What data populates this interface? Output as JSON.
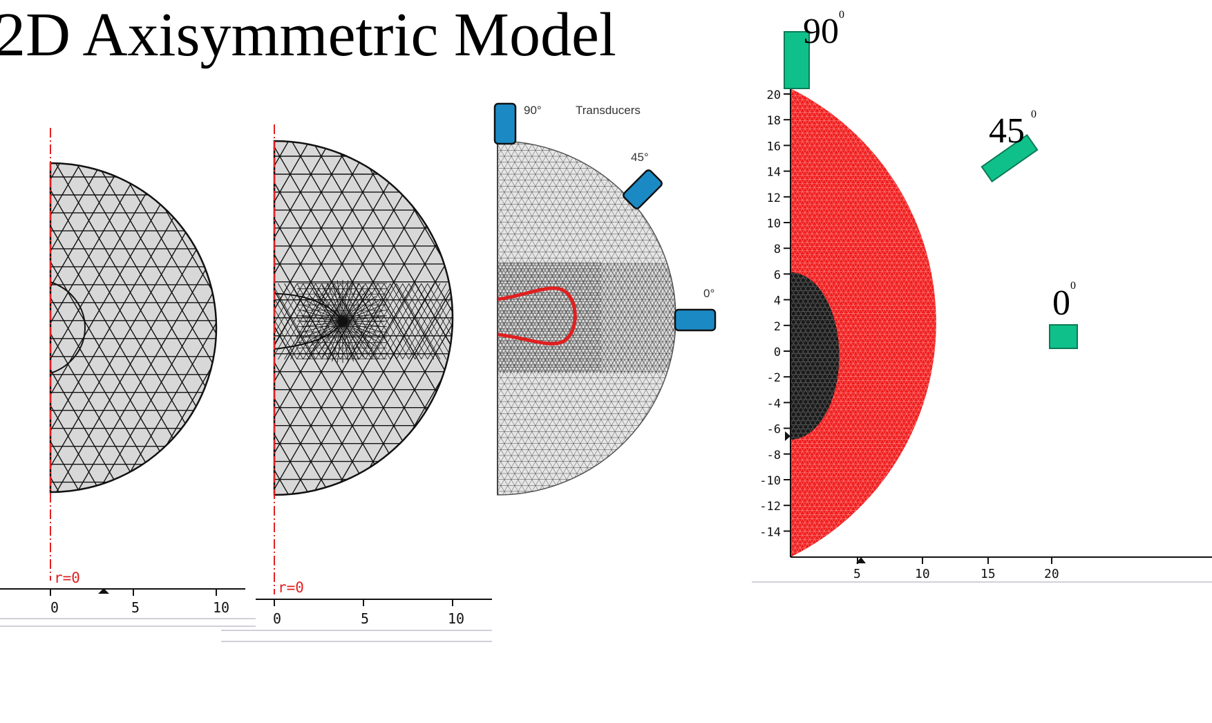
{
  "title": "2D Axisymmetric Model",
  "panel1": {
    "axis_label": "r=0",
    "ticks": [
      "0",
      "5",
      "10"
    ]
  },
  "panel2": {
    "axis_label": "r=0",
    "ticks": [
      "0",
      "5",
      "10"
    ]
  },
  "panel3": {
    "heading": "Transducers",
    "labels": [
      "90°",
      "45°",
      "0°"
    ]
  },
  "panel4": {
    "angle_labels": [
      "90",
      "45",
      "0"
    ],
    "degree_superscript": "0",
    "y_ticks": [
      "20",
      "18",
      "16",
      "14",
      "12",
      "10",
      "8",
      "6",
      "4",
      "2",
      "0",
      "-2",
      "-4",
      "-6",
      "-8",
      "-10",
      "-12",
      "-14"
    ],
    "x_ticks": [
      "5",
      "10",
      "15",
      "20"
    ]
  },
  "colors": {
    "mesh_fill": "#d8d8d8",
    "mesh_line": "#111111",
    "axis_red": "#e02020",
    "transducer_blue": "#1b8ac4",
    "transducer_green": "#10c08a",
    "red_mesh": "#ef1b1b"
  }
}
